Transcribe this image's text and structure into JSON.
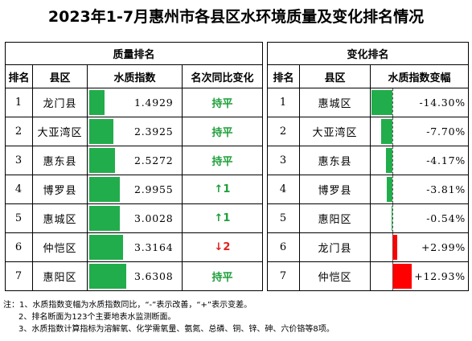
{
  "title": "2023年1-7月惠州市各县区水环境质量及变化排名情况",
  "quality": {
    "group_title": "质量排名",
    "headers": [
      "排名",
      "县区",
      "水质指数",
      "名次同比变化"
    ],
    "rows": [
      {
        "rank": "1",
        "area": "龙门县",
        "index": "1.4929",
        "index_value": 1.4929,
        "change": "持平",
        "change_type": "flat"
      },
      {
        "rank": "2",
        "area": "大亚湾区",
        "index": "2.3925",
        "index_value": 2.3925,
        "change": "持平",
        "change_type": "flat"
      },
      {
        "rank": "3",
        "area": "惠东县",
        "index": "2.5272",
        "index_value": 2.5272,
        "change": "持平",
        "change_type": "flat"
      },
      {
        "rank": "4",
        "area": "博罗县",
        "index": "2.9955",
        "index_value": 2.9955,
        "change": "↑1",
        "change_type": "up"
      },
      {
        "rank": "5",
        "area": "惠城区",
        "index": "3.0028",
        "index_value": 3.0028,
        "change": "↑1",
        "change_type": "up"
      },
      {
        "rank": "6",
        "area": "仲恺区",
        "index": "3.3164",
        "index_value": 3.3164,
        "change": "↓2",
        "change_type": "down"
      },
      {
        "rank": "7",
        "area": "惠阳区",
        "index": "3.6308",
        "index_value": 3.6308,
        "change": "持平",
        "change_type": "flat"
      }
    ]
  },
  "change": {
    "group_title": "变化排名",
    "headers": [
      "排名",
      "县区",
      "水质指数变幅"
    ],
    "rows": [
      {
        "rank": "1",
        "area": "惠城区",
        "delta": "-14.30%",
        "delta_value": -14.3
      },
      {
        "rank": "2",
        "area": "大亚湾区",
        "delta": "-7.70%",
        "delta_value": -7.7
      },
      {
        "rank": "3",
        "area": "惠东县",
        "delta": "-4.17%",
        "delta_value": -4.17
      },
      {
        "rank": "4",
        "area": "博罗县",
        "delta": "-3.81%",
        "delta_value": -3.81
      },
      {
        "rank": "5",
        "area": "惠阳区",
        "delta": "-0.54%",
        "delta_value": -0.54
      },
      {
        "rank": "6",
        "area": "龙门县",
        "delta": "+2.99%",
        "delta_value": 2.99
      },
      {
        "rank": "7",
        "area": "仲恺区",
        "delta": "+12.93%",
        "delta_value": 12.93
      }
    ]
  },
  "colors": {
    "good_bar": "#21ad4b",
    "bad_bar": "#ff0000",
    "flat_text": "#1e9e3a",
    "up_text": "#1e9e3a",
    "down_text": "#e0201c"
  },
  "notes": [
    "注：1、水质指数变幅为水质指数同比，“-”表示改善，“+”表示变差。",
    "2、排名断面为123个主要地表水监测断面。",
    "3、水质指数计算指标为溶解氧、化学需氧量、氨氮、总磷、铜、锌、砷、六价铬等8项。"
  ]
}
